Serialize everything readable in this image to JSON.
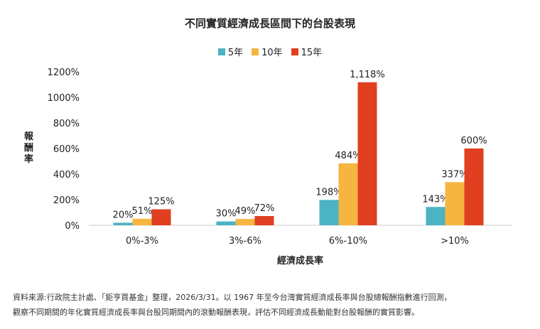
{
  "chart_data": {
    "type": "bar",
    "title": "不同實質經濟成長區間下的台股表現",
    "xlabel": "經濟成長率",
    "ylabel": "報酬率",
    "categories": [
      "0%-3%",
      "3%-6%",
      "6%-10%",
      ">10%"
    ],
    "series": [
      {
        "name": "5年",
        "color": "#4BB3C3",
        "values": [
          20,
          30,
          198,
          143
        ],
        "labels": [
          "20%",
          "30%",
          "198%",
          "143%"
        ]
      },
      {
        "name": "10年",
        "color": "#F6B53F",
        "values": [
          51,
          49,
          484,
          337
        ],
        "labels": [
          "51%",
          "49%",
          "484%",
          "337%"
        ]
      },
      {
        "name": "15年",
        "color": "#E0401F",
        "values": [
          125,
          72,
          1118,
          600
        ],
        "labels": [
          "125%",
          "72%",
          "1,118%",
          "600%"
        ]
      }
    ],
    "ylim": [
      0,
      1200
    ],
    "yticks": [
      0,
      200,
      400,
      600,
      800,
      1000,
      1200
    ],
    "ytick_labels": [
      "0%",
      "200%",
      "400%",
      "600%",
      "800%",
      "1000%",
      "1200%"
    ],
    "grid": false,
    "legend": "top-center"
  },
  "note": [
    "資料來源:行政院主計處、「鉅亨買基金」整理，2026/3/31。以 1967 年至今台灣實質經濟成長率與台股總報酬指數進行回測，",
    "觀察不同期間的年化實質經濟成長率與台股同期間內的滾動報酬表現，評估不同經濟成長動能對台股報酬的實質影響。"
  ]
}
